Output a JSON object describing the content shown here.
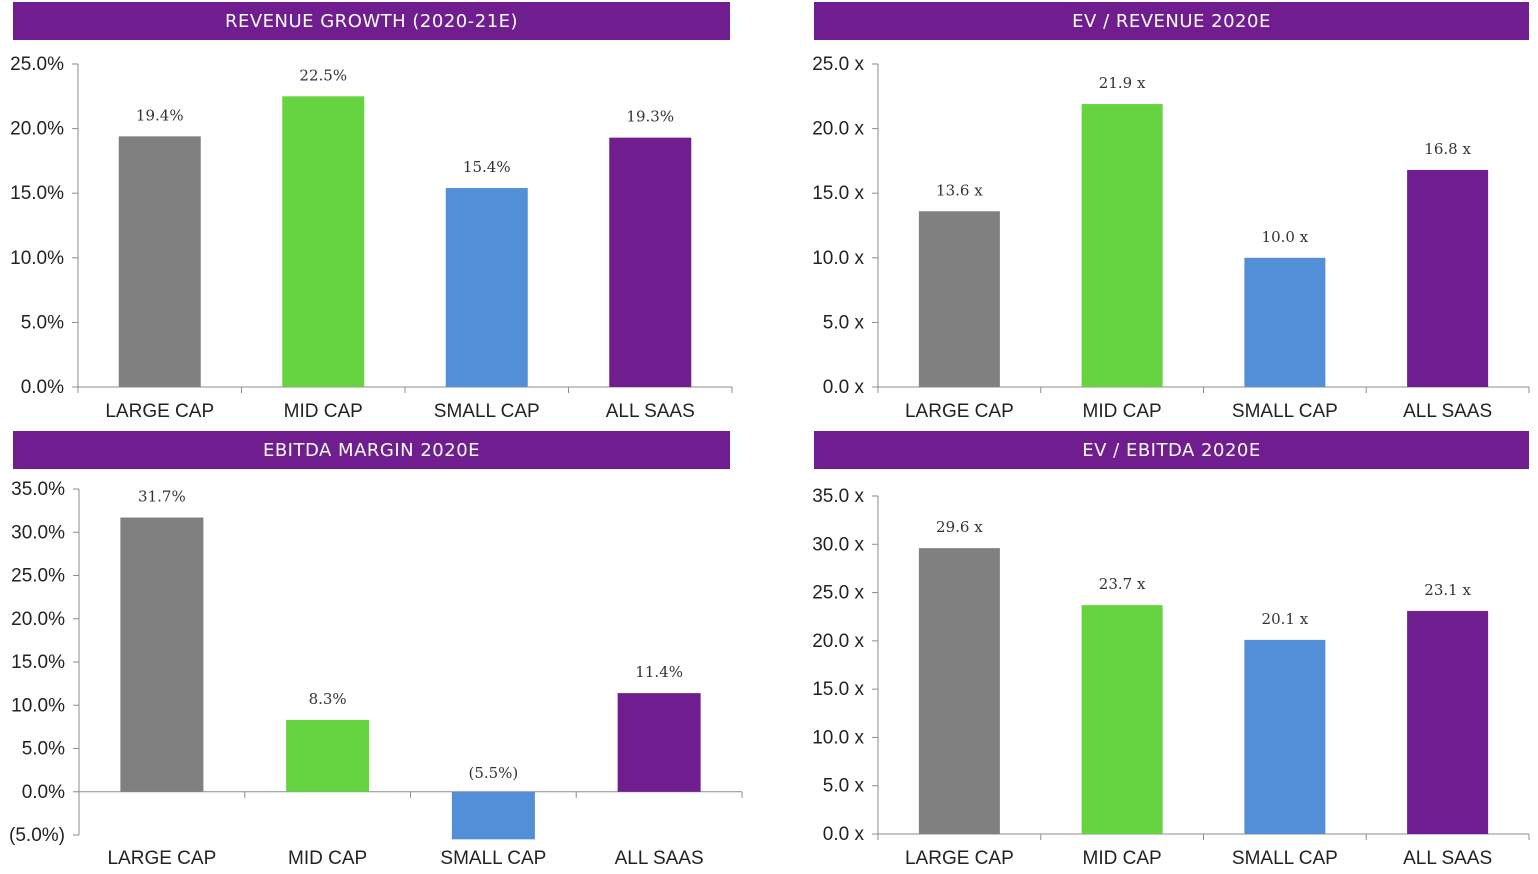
{
  "colors": {
    "header_bg": "#6f1d8f",
    "large_cap": "#808080",
    "mid_cap": "#66d340",
    "small_cap": "#538fd6",
    "all_saas": "#6f1d8f",
    "axis": "#8c8c8c"
  },
  "chart_data": [
    {
      "type": "bar",
      "title": "REVENUE GROWTH (2020-21E)",
      "categories": [
        "LARGE CAP",
        "MID CAP",
        "SMALL CAP",
        "ALL SAAS"
      ],
      "values": [
        19.4,
        22.5,
        15.4,
        19.3
      ],
      "data_labels": [
        "19.4%",
        "22.5%",
        "15.4%",
        "19.3%"
      ],
      "ylim": [
        0,
        25
      ],
      "yticks": [
        0,
        5,
        10,
        15,
        20,
        25
      ],
      "ytick_labels": [
        "0.0%",
        "5.0%",
        "10.0%",
        "15.0%",
        "20.0%",
        "25.0%"
      ],
      "grid": false,
      "legend": "none"
    },
    {
      "type": "bar",
      "title": "EV / REVENUE 2020E",
      "categories": [
        "LARGE CAP",
        "MID CAP",
        "SMALL CAP",
        "ALL SAAS"
      ],
      "values": [
        13.6,
        21.9,
        10.0,
        16.8
      ],
      "data_labels": [
        "13.6 x",
        "21.9 x",
        "10.0 x",
        "16.8 x"
      ],
      "ylim": [
        0,
        25
      ],
      "yticks": [
        0,
        5,
        10,
        15,
        20,
        25
      ],
      "ytick_labels": [
        "0.0 x",
        "5.0 x",
        "10.0 x",
        "15.0 x",
        "20.0 x",
        "25.0 x"
      ],
      "grid": false,
      "legend": "none"
    },
    {
      "type": "bar",
      "title": "EBITDA MARGIN 2020E",
      "categories": [
        "LARGE CAP",
        "MID CAP",
        "SMALL CAP",
        "ALL SAAS"
      ],
      "values": [
        31.7,
        8.3,
        -5.5,
        11.4
      ],
      "data_labels": [
        "31.7%",
        "8.3%",
        "(5.5%)",
        "11.4%"
      ],
      "ylim": [
        -5,
        35
      ],
      "yticks": [
        -5,
        0,
        5,
        10,
        15,
        20,
        25,
        30,
        35
      ],
      "ytick_labels": [
        "(5.0%)",
        "0.0%",
        "5.0%",
        "10.0%",
        "15.0%",
        "20.0%",
        "25.0%",
        "30.0%",
        "35.0%"
      ],
      "grid": false,
      "legend": "none"
    },
    {
      "type": "bar",
      "title": "EV / EBITDA 2020E",
      "categories": [
        "LARGE CAP",
        "MID CAP",
        "SMALL CAP",
        "ALL SAAS"
      ],
      "values": [
        29.6,
        23.7,
        20.1,
        23.1
      ],
      "data_labels": [
        "29.6 x",
        "23.7 x",
        "20.1 x",
        "23.1 x"
      ],
      "ylim": [
        0,
        35
      ],
      "yticks": [
        0,
        5,
        10,
        15,
        20,
        25,
        30,
        35
      ],
      "ytick_labels": [
        "0.0 x",
        "5.0 x",
        "10.0 x",
        "15.0 x",
        "20.0 x",
        "25.0 x",
        "30.0 x",
        "35.0 x"
      ],
      "grid": false,
      "legend": "none"
    }
  ]
}
